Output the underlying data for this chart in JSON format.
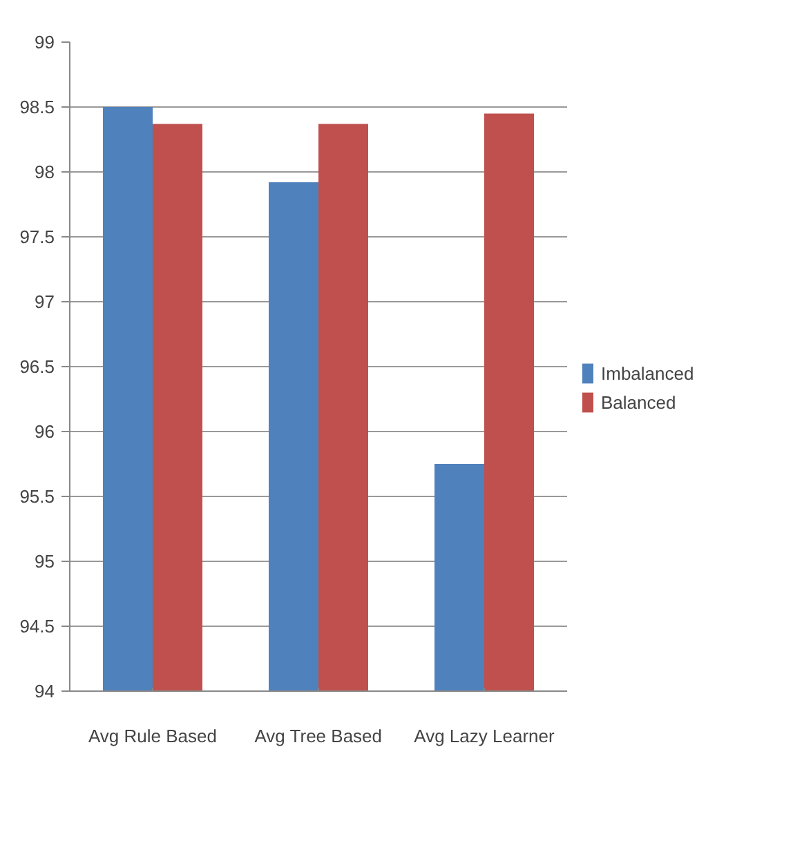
{
  "chart_data": {
    "type": "bar",
    "categories": [
      "Avg Rule Based",
      "Avg Tree Based",
      "Avg Lazy Learner"
    ],
    "series": [
      {
        "name": "Imbalanced",
        "color": "#4f81bd",
        "values": [
          98.5,
          97.92,
          95.75
        ]
      },
      {
        "name": "Balanced",
        "color": "#c0504d",
        "values": [
          98.37,
          98.37,
          98.45
        ]
      }
    ],
    "ylim": [
      94,
      99
    ],
    "yticks": [
      94,
      94.5,
      95,
      95.5,
      96,
      96.5,
      97,
      97.5,
      98,
      98.5,
      99
    ],
    "grid": "y",
    "legend": "right"
  }
}
